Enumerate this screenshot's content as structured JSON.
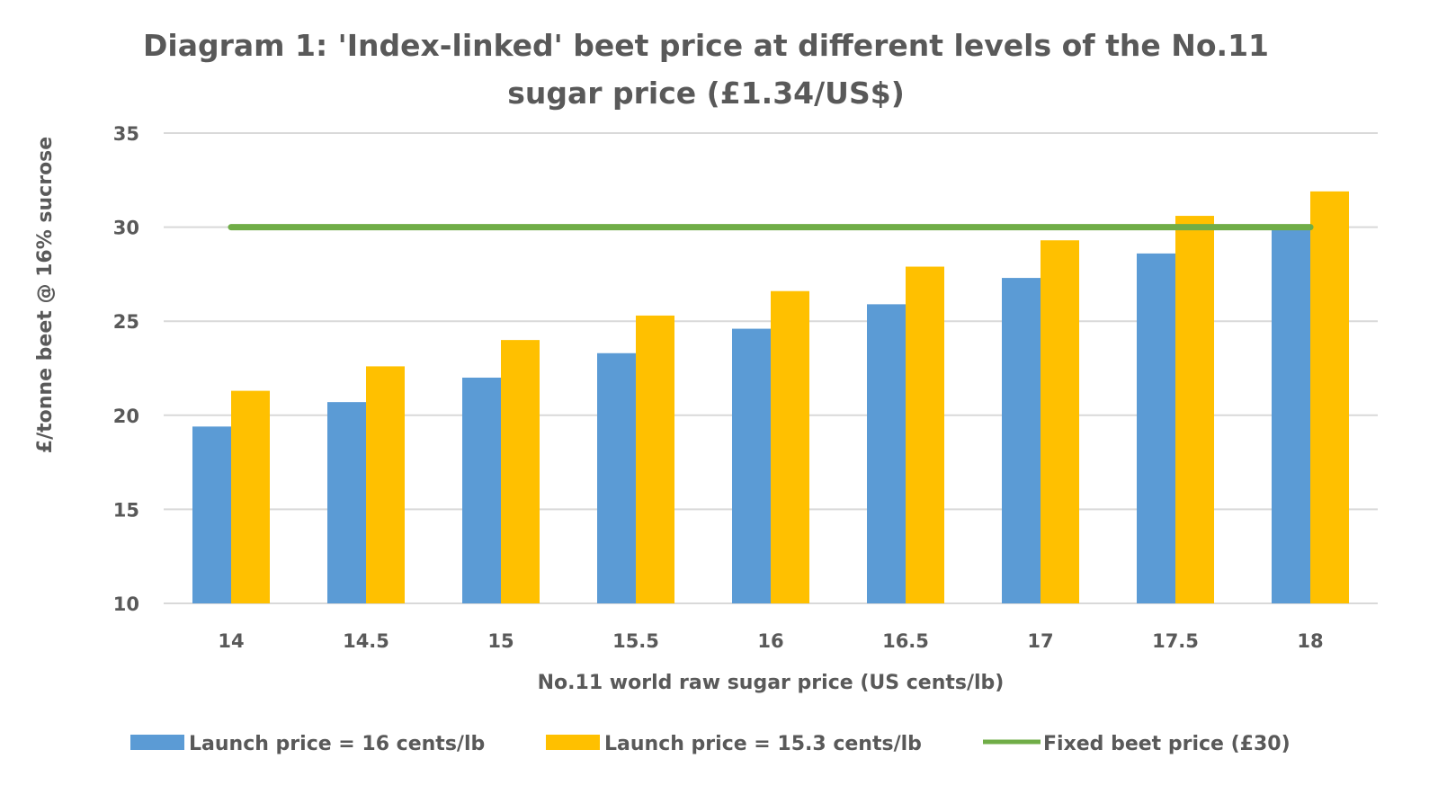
{
  "chart_data": {
    "type": "bar",
    "title_line1": "Diagram 1: 'Index-linked' beet price at different levels of the No.11",
    "title_line2": "sugar price (£1.34/US$)",
    "xlabel": "No.11 world raw sugar price (US cents/lb)",
    "ylabel": "£/tonne beet @ 16% sucrose",
    "categories": [
      "14",
      "14.5",
      "15",
      "15.5",
      "16",
      "16.5",
      "17",
      "17.5",
      "18"
    ],
    "ylim": [
      10,
      35
    ],
    "yticks": [
      "10",
      "15",
      "20",
      "25",
      "30",
      "35"
    ],
    "grid": true,
    "legend_position": "bottom",
    "series": [
      {
        "name": "Launch price = 16 cents/lb",
        "kind": "bar",
        "color": "#5B9BD5",
        "values": [
          19.4,
          20.7,
          22.0,
          23.3,
          24.6,
          25.9,
          27.3,
          28.6,
          29.9
        ]
      },
      {
        "name": "Launch price = 15.3 cents/lb",
        "kind": "bar",
        "color": "#FFC000",
        "values": [
          21.3,
          22.6,
          24.0,
          25.3,
          26.6,
          27.9,
          29.3,
          30.6,
          31.9
        ]
      },
      {
        "name": "Fixed beet price (£30)",
        "kind": "line",
        "color": "#70AD47",
        "values": [
          30,
          30,
          30,
          30,
          30,
          30,
          30,
          30,
          30
        ]
      }
    ]
  }
}
